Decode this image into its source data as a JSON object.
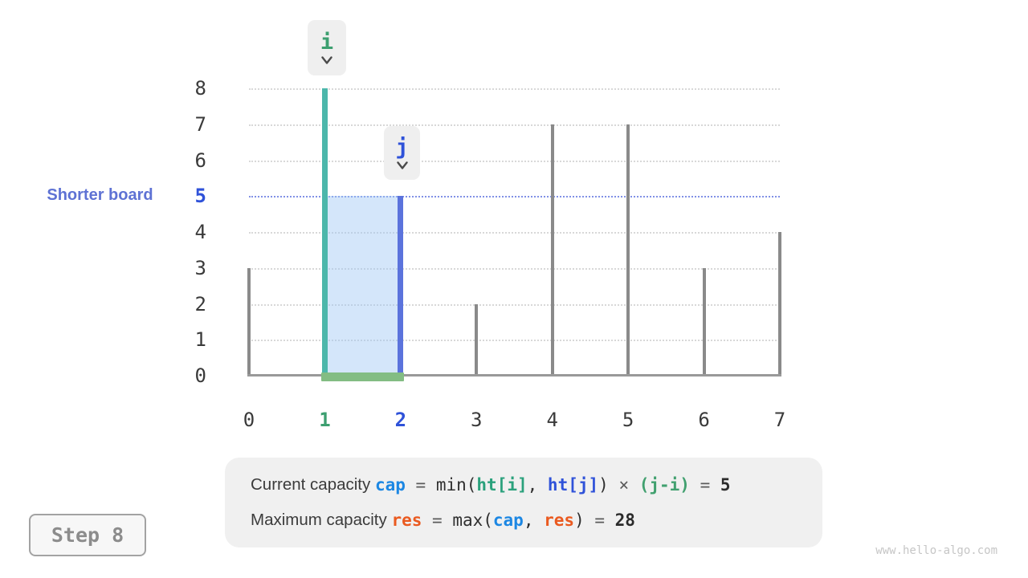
{
  "page": {
    "watermark": "www.hello-algo.com"
  },
  "step_indicator": {
    "label": "Step 8"
  },
  "annotations": {
    "shorter_board_label": "Shorter board",
    "pointer_i": {
      "label": "i",
      "x_index": 1
    },
    "pointer_j": {
      "label": "j",
      "x_index": 2
    }
  },
  "palette": {
    "teal_bar": "#4cb7ab",
    "blue_bar": "#5b73dc",
    "bar_gray": "#8a8a8a",
    "index_green": "#3d9f70",
    "index_blue": "#2f52d9",
    "cap_blue": "#1c87e3",
    "res_orange": "#ea5a20",
    "hti_green": "#2aa17c",
    "ji_green": "#41a06f",
    "container_fill": "rgba(160,200,245,0.45)",
    "width_bar_green": "#83bd83",
    "ref_line": "#8191e6",
    "gridline": "#d8d8d8",
    "axis_line": "#999999",
    "tick_text": "#3a3a3a",
    "shorter_board_text": "#5e72d4",
    "label_text": "#3b3b3b",
    "code_text": "#2f2f2f",
    "operator_text": "#5a5a5a",
    "result_text": "#2b2b2b",
    "pointer_arrow": "#4a4a4a",
    "step_text": "#8c8c8c",
    "watermark_text": "#c6c6c6"
  },
  "chart_data": {
    "type": "bar",
    "x": [
      0,
      1,
      2,
      3,
      4,
      5,
      6,
      7
    ],
    "values": [
      3,
      8,
      5,
      2,
      7,
      7,
      3,
      4
    ],
    "xticks": [
      "0",
      "1",
      "2",
      "3",
      "4",
      "5",
      "6",
      "7"
    ],
    "yticks": [
      "0",
      "1",
      "2",
      "3",
      "4",
      "5",
      "6",
      "7",
      "8"
    ],
    "ylim": [
      0,
      8
    ],
    "grid": "horizontal-dotted",
    "highlight_bars": {
      "1": "teal_bar",
      "2": "blue_bar"
    },
    "xtick_highlights": {
      "1": "index_green",
      "2": "index_blue"
    },
    "ytick_highlights": {
      "5": "index_blue"
    },
    "reference_line": {
      "y": 5,
      "label": "Shorter board",
      "palette": "ref_line"
    },
    "shaded_region": {
      "from_index": 1,
      "to_index": 2,
      "top": 5,
      "palette": "container_fill"
    },
    "width_bar": {
      "from_index": 1,
      "to_index": 2,
      "palette": "width_bar_green"
    },
    "current_capacity": 5,
    "maximum_capacity": 28
  },
  "formula_panel": {
    "lines": [
      {
        "segments": [
          {
            "text": "Current capacity ",
            "style": "label"
          },
          {
            "text": "cap",
            "style": "cap"
          },
          {
            "text": " = ",
            "style": "op"
          },
          {
            "text": "min(",
            "style": "code"
          },
          {
            "text": "ht[i]",
            "style": "hti"
          },
          {
            "text": ", ",
            "style": "code"
          },
          {
            "text": "ht[j]",
            "style": "htj"
          },
          {
            "text": ")",
            "style": "code"
          },
          {
            "text": " × ",
            "style": "op"
          },
          {
            "text": "(j-i)",
            "style": "ji"
          },
          {
            "text": " = ",
            "style": "op"
          },
          {
            "text": "5",
            "style": "result"
          }
        ]
      },
      {
        "segments": [
          {
            "text": "Maximum capacity ",
            "style": "label"
          },
          {
            "text": "res",
            "style": "res"
          },
          {
            "text": " = ",
            "style": "op"
          },
          {
            "text": "max(",
            "style": "code"
          },
          {
            "text": "cap",
            "style": "cap"
          },
          {
            "text": ", ",
            "style": "code"
          },
          {
            "text": "res",
            "style": "res"
          },
          {
            "text": ")",
            "style": "code"
          },
          {
            "text": " = ",
            "style": "op"
          },
          {
            "text": "28",
            "style": "result"
          }
        ]
      }
    ]
  }
}
